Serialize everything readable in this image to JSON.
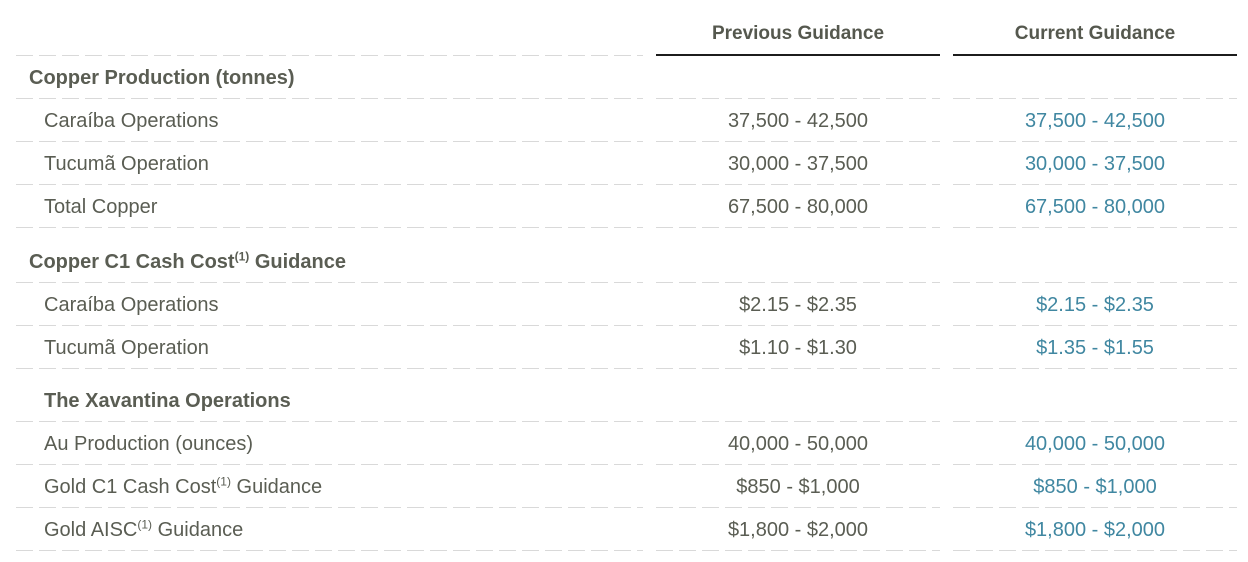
{
  "colors": {
    "current_guidance_accent": "#4087a1",
    "body_text": "#5a5d53",
    "header_underline": "#1c1c1c",
    "row_divider": "#d9d9d9"
  },
  "table": {
    "headers": {
      "previous": "Previous Guidance",
      "current": "Current Guidance"
    },
    "sections": {
      "copper_production": {
        "label": "Copper Production (tonnes)"
      },
      "copper_c1": {
        "label": "Copper C1 Cash Cost",
        "sup": "(1)",
        "label_after": " Guidance"
      },
      "xavantina": {
        "label": "The Xavantina Operations"
      }
    },
    "rows": {
      "caraiba_prod": {
        "label": "Caraíba Operations",
        "prev": "37,500 - 42,500",
        "curr": "37,500 - 42,500"
      },
      "tucuma_prod": {
        "label": "Tucumã Operation",
        "prev": "30,000 - 37,500",
        "curr": "30,000 - 37,500"
      },
      "total_copper": {
        "label": "Total Copper",
        "prev": "67,500 - 80,000",
        "curr": "67,500 - 80,000"
      },
      "caraiba_cost": {
        "label": "Caraíba Operations",
        "prev": "$2.15 - $2.35",
        "curr": "$2.15 - $2.35"
      },
      "tucuma_cost": {
        "label": "Tucumã Operation",
        "prev": "$1.10 - $1.30",
        "curr": "$1.35 - $1.55"
      },
      "au_production": {
        "label": "Au Production (ounces)",
        "prev": "40,000 - 50,000",
        "curr": "40,000 - 50,000"
      },
      "gold_c1": {
        "label": "Gold C1 Cash Cost",
        "sup": "(1)",
        "label_after": " Guidance",
        "prev": "$850 - $1,000",
        "curr": "$850 - $1,000"
      },
      "gold_aisc": {
        "label": "Gold AISC",
        "sup": "(1)",
        "label_after": " Guidance",
        "prev": "$1,800 - $2,000",
        "curr": "$1,800 - $2,000"
      }
    }
  }
}
